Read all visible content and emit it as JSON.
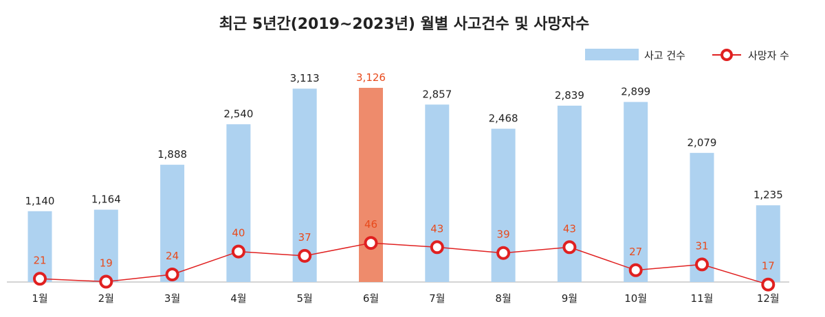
{
  "chart_data": {
    "type": "bar",
    "title": "최근 5년간(2019~2023년) 월별 사고건수 및 사망자수",
    "categories": [
      "1월",
      "2월",
      "3월",
      "4월",
      "5월",
      "6월",
      "7월",
      "8월",
      "9월",
      "10월",
      "11월",
      "12월"
    ],
    "series": [
      {
        "name": "사고 건수",
        "type": "bar",
        "values": [
          1140,
          1164,
          1888,
          2540,
          3113,
          3126,
          2857,
          2468,
          2839,
          2899,
          2079,
          1235
        ],
        "labels": [
          "1,140",
          "1,164",
          "1,888",
          "2,540",
          "3,113",
          "3,126",
          "2,857",
          "2,468",
          "2,839",
          "2,899",
          "2,079",
          "1,235"
        ],
        "color": "#aed2f0",
        "highlight_index": 5,
        "highlight_color": "#ee8b6c"
      },
      {
        "name": "사망자 수",
        "type": "line",
        "values": [
          21,
          19,
          24,
          40,
          37,
          46,
          43,
          39,
          43,
          27,
          31,
          17
        ],
        "labels": [
          "21",
          "19",
          "24",
          "40",
          "37",
          "46",
          "43",
          "39",
          "43",
          "27",
          "31",
          "17"
        ],
        "color": "#e02020"
      }
    ],
    "legend_position": "top-right",
    "grid": false
  },
  "colors": {
    "bar": "#aed2f0",
    "bar_highlight": "#ee8b6c",
    "line": "#e02020",
    "axis": "#aaaaaa",
    "label_highlight": "#e84a1c"
  }
}
